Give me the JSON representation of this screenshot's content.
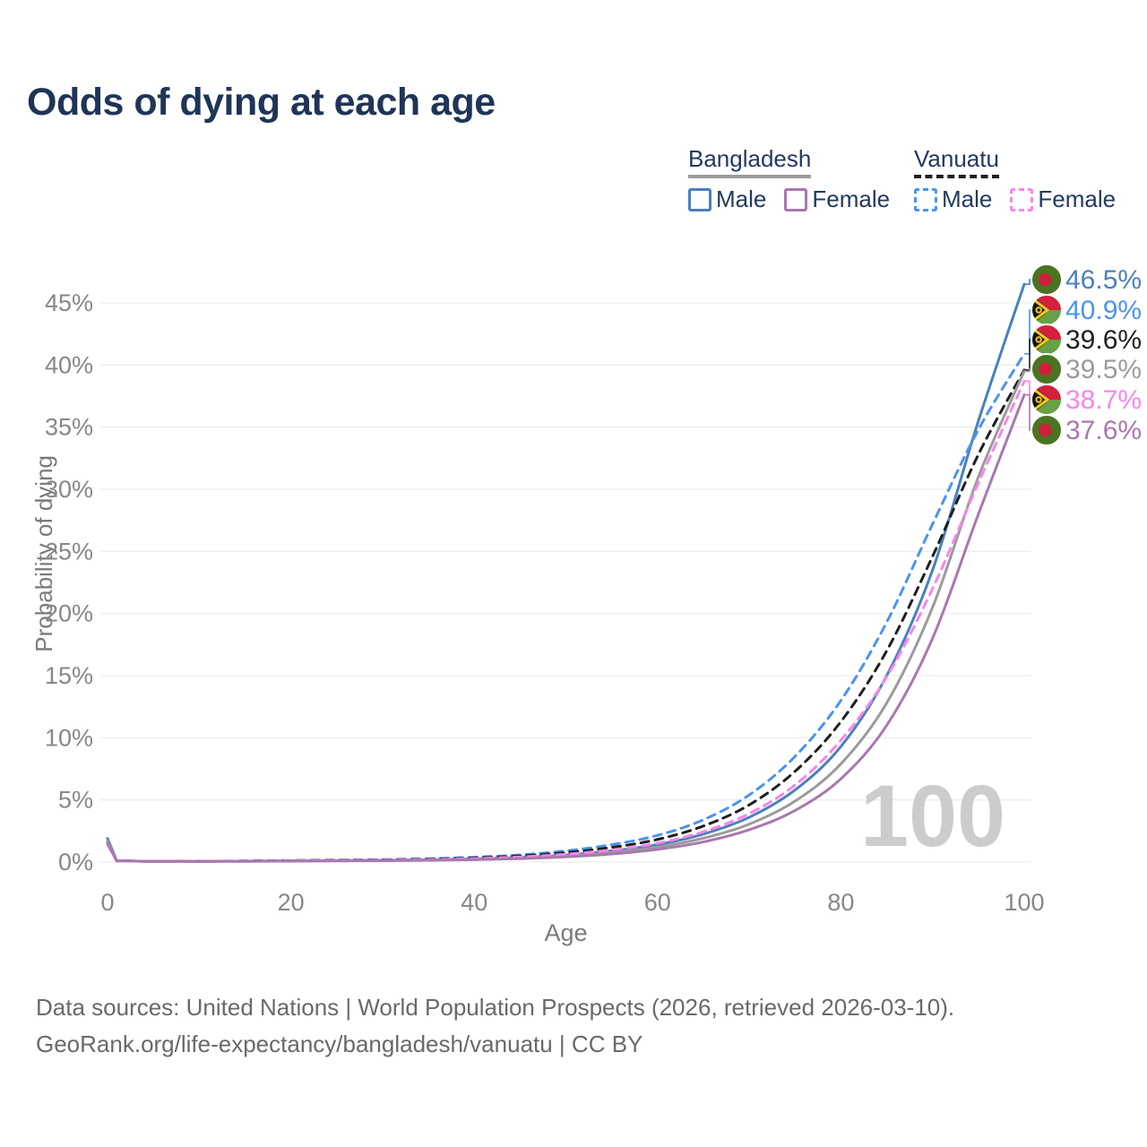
{
  "title": "Odds of dying at each age",
  "legend": {
    "groups": [
      {
        "label": "Bangladesh",
        "items": [
          {
            "label": "Male"
          },
          {
            "label": "Female"
          }
        ]
      },
      {
        "label": "Vanuatu",
        "items": [
          {
            "label": "Male"
          },
          {
            "label": "Female"
          }
        ]
      }
    ]
  },
  "footer": {
    "line1": "Data sources: United Nations | World Population Prospects (2026, retrieved 2026-03-10).",
    "line2": "GeoRank.org/life-expectancy/bangladesh/vanuatu | CC BY"
  },
  "chart_data": {
    "type": "line",
    "title": "Odds of dying at each age",
    "xlabel": "Age",
    "ylabel": "Probability of dying",
    "xlim": [
      0,
      100
    ],
    "ylim": [
      0,
      47
    ],
    "grid": "horizontal-only",
    "legend_position": "top-right",
    "hover_age_label": "100",
    "xticks": [
      {
        "value": 0,
        "label": "0"
      },
      {
        "value": 20,
        "label": "20"
      },
      {
        "value": 40,
        "label": "40"
      },
      {
        "value": 60,
        "label": "60"
      },
      {
        "value": 80,
        "label": "80"
      },
      {
        "value": 100,
        "label": "100"
      }
    ],
    "yticks": [
      {
        "value": 0,
        "label": "0%"
      },
      {
        "value": 5,
        "label": "5%"
      },
      {
        "value": 10,
        "label": "10%"
      },
      {
        "value": 15,
        "label": "15%"
      },
      {
        "value": 20,
        "label": "20%"
      },
      {
        "value": 25,
        "label": "25%"
      },
      {
        "value": 30,
        "label": "30%"
      },
      {
        "value": 35,
        "label": "35%"
      },
      {
        "value": 40,
        "label": "40%"
      },
      {
        "value": 45,
        "label": "45%"
      }
    ],
    "x": [
      0,
      1,
      5,
      10,
      15,
      20,
      25,
      30,
      35,
      40,
      45,
      50,
      55,
      60,
      65,
      70,
      75,
      80,
      85,
      90,
      95,
      100
    ],
    "series": [
      {
        "key": "bd_male",
        "name": "Bangladesh Male",
        "country": "Bangladesh",
        "sex": "Male",
        "color": "#4a80bd",
        "dashed": false,
        "flag": "bangladesh",
        "end_label": "46.5%",
        "values": [
          1.9,
          0.12,
          0.05,
          0.05,
          0.07,
          0.1,
          0.12,
          0.14,
          0.18,
          0.25,
          0.37,
          0.57,
          0.9,
          1.4,
          2.25,
          3.6,
          5.8,
          9.3,
          15.0,
          23.5,
          35.5,
          46.5
        ]
      },
      {
        "key": "vu_male",
        "name": "Vanuatu Male",
        "country": "Vanuatu",
        "sex": "Male",
        "color": "#4b93f1",
        "dashed": true,
        "flag": "vanuatu",
        "end_label": "40.9%",
        "values": [
          1.6,
          0.1,
          0.06,
          0.06,
          0.09,
          0.13,
          0.16,
          0.2,
          0.27,
          0.39,
          0.58,
          0.9,
          1.4,
          2.15,
          3.4,
          5.4,
          8.5,
          13.0,
          19.3,
          27.2,
          34.8,
          40.9
        ]
      },
      {
        "key": "vu_both",
        "name": "Vanuatu (both sexes)",
        "country": "Vanuatu",
        "sex": "Both",
        "color": "#1f1f1f",
        "dashed": true,
        "flag": "vanuatu",
        "end_label": "39.6%",
        "values": [
          1.5,
          0.09,
          0.05,
          0.05,
          0.08,
          0.11,
          0.14,
          0.17,
          0.23,
          0.33,
          0.49,
          0.76,
          1.18,
          1.82,
          2.9,
          4.6,
          7.3,
          11.3,
          17.0,
          24.6,
          32.8,
          39.6
        ]
      },
      {
        "key": "bd_both",
        "name": "Bangladesh (both sexes)",
        "country": "Bangladesh",
        "sex": "Both",
        "color": "#9b9b9b",
        "dashed": false,
        "flag": "bangladesh",
        "end_label": "39.5%",
        "values": [
          1.7,
          0.11,
          0.045,
          0.045,
          0.06,
          0.09,
          0.11,
          0.13,
          0.16,
          0.22,
          0.32,
          0.49,
          0.77,
          1.2,
          1.92,
          3.05,
          4.9,
          7.9,
          12.8,
          20.5,
          31.0,
          39.5
        ]
      },
      {
        "key": "vu_female",
        "name": "Vanuatu Female",
        "country": "Vanuatu",
        "sex": "Female",
        "color": "#f984ec",
        "dashed": true,
        "flag": "vanuatu",
        "end_label": "38.7%",
        "values": [
          1.4,
          0.08,
          0.05,
          0.05,
          0.07,
          0.1,
          0.12,
          0.15,
          0.2,
          0.28,
          0.41,
          0.63,
          0.98,
          1.52,
          2.45,
          3.9,
          6.2,
          9.8,
          14.9,
          22.0,
          30.5,
          38.7
        ]
      },
      {
        "key": "bd_female",
        "name": "Bangladesh Female",
        "country": "Bangladesh",
        "sex": "Female",
        "color": "#a978ae",
        "dashed": false,
        "flag": "bangladesh",
        "end_label": "37.6%",
        "values": [
          1.5,
          0.1,
          0.04,
          0.04,
          0.05,
          0.07,
          0.09,
          0.11,
          0.14,
          0.19,
          0.27,
          0.42,
          0.65,
          1.02,
          1.62,
          2.6,
          4.15,
          6.7,
          11.0,
          18.0,
          28.0,
          37.6
        ]
      }
    ],
    "flag_colors": {
      "bangladesh": {
        "field": "#4a7322",
        "disc": "#d01f3a"
      },
      "vanuatu": {
        "red": "#d3203c",
        "green": "#67a046",
        "black": "#151515",
        "yellow": "#f2c71f"
      }
    },
    "style_colors": {
      "title": "#1f3557",
      "axis_text": "#7a7a7a",
      "tick_text": "#878787",
      "gridline": "#ededed",
      "watermark": "#cccccc",
      "footer_text": "#696969"
    }
  }
}
